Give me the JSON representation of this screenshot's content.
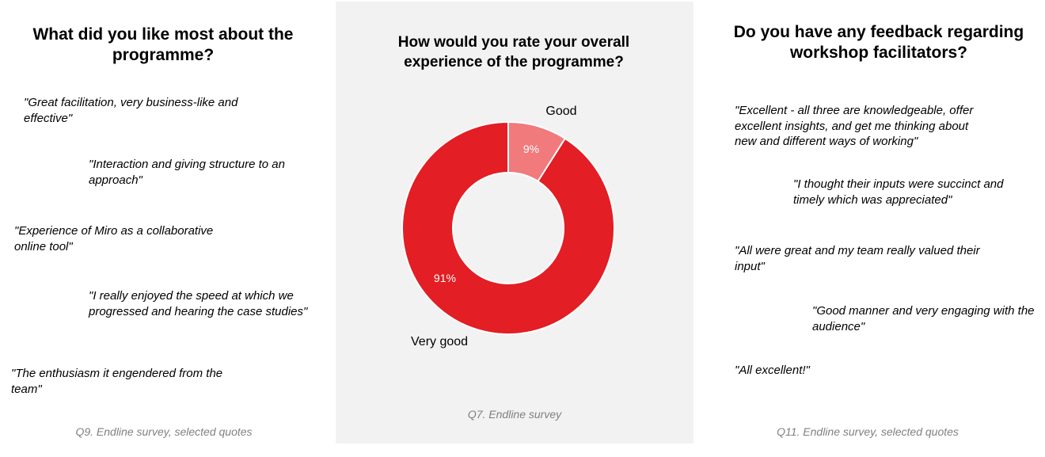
{
  "left": {
    "title": "What did you like most about the programme?",
    "quotes": [
      "\"Great facilitation, very business-like and effective\"",
      "\"Interaction and giving structure to an approach\"",
      "\"Experience of Miro as a collaborative online tool\"",
      "\"I really enjoyed the speed at which we progressed and hearing the case studies\"",
      "\"The enthusiasm it engendered from the team\""
    ],
    "source": "Q9. Endline survey, selected quotes"
  },
  "middle": {
    "title": "How would you rate your overall experience of the programme?",
    "source": "Q7. Endline survey"
  },
  "right": {
    "title": "Do you have any feedback regarding workshop facilitators?",
    "quotes": [
      "\"Excellent - all three are knowledgeable, offer excellent insights, and get me thinking about new and different ways of working\"",
      "\"I thought their inputs were succinct and timely which was appreciated\"",
      "\"All were great and my team really valued their input\"",
      "\"Good manner and very engaging with the audience\"",
      "\"All excellent!\""
    ],
    "source": "Q11. Endline survey, selected quotes"
  },
  "chart_data": {
    "type": "pie",
    "subtype": "donut",
    "title": "How would you rate your overall experience of the programme?",
    "categories": [
      "Good",
      "Very good"
    ],
    "values": [
      9,
      91
    ],
    "data_labels": [
      "9%",
      "91%"
    ],
    "colors": [
      "#f07a7c",
      "#e31e24"
    ],
    "legend": "none"
  }
}
